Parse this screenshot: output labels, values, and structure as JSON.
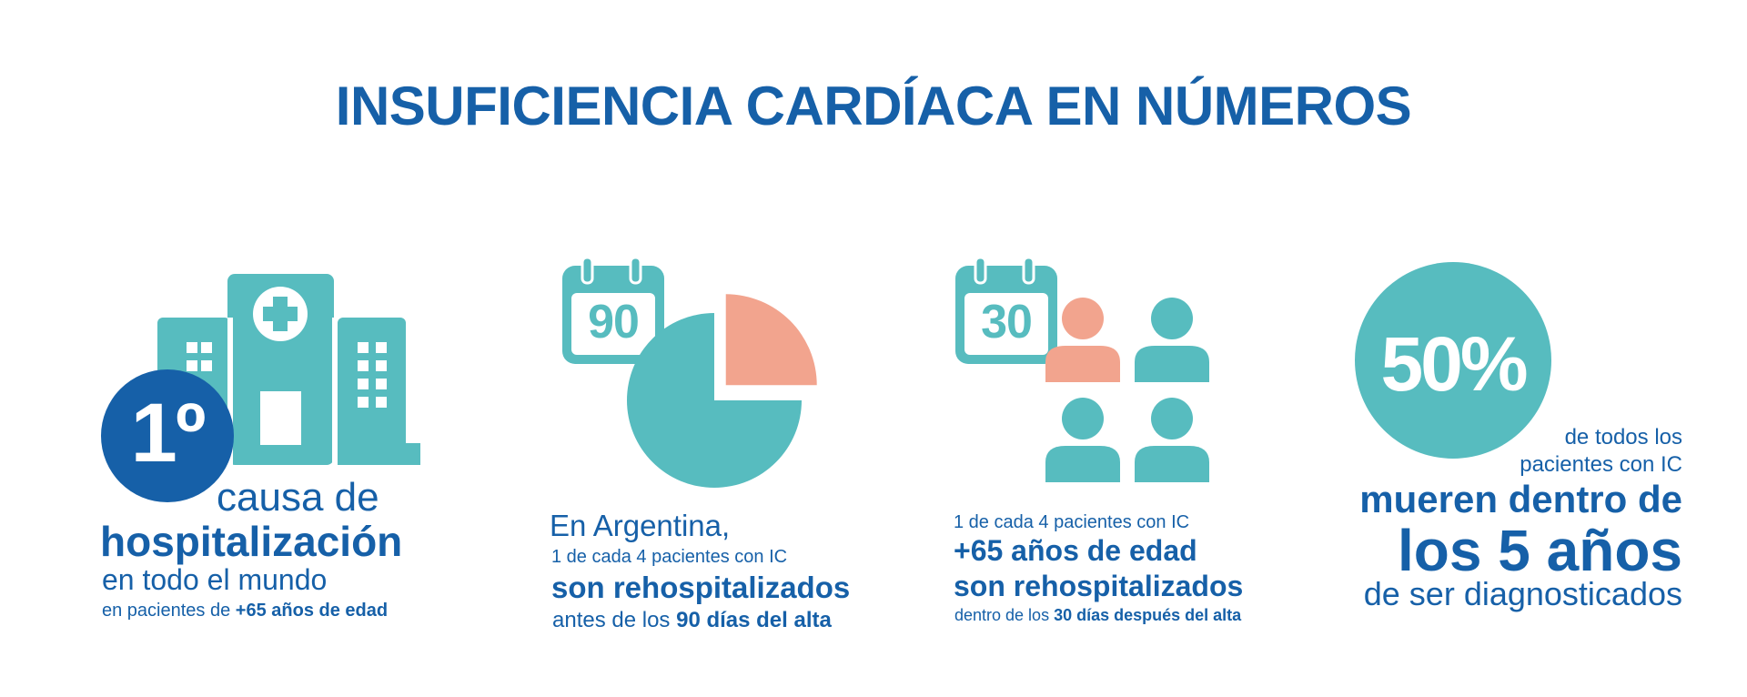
{
  "title": "INSUFICIENCIA CARDÍACA EN NÚMEROS",
  "colors": {
    "blue": "#1660a8",
    "teal": "#57bcbf",
    "salmon": "#f2a48e",
    "white": "#ffffff"
  },
  "panel1": {
    "icon": "hospital-icon",
    "badge": "1º",
    "line1": "causa de",
    "line2": "hospitalización",
    "line3": "en todo el mundo",
    "line4_prefix": "en pacientes de ",
    "line4_bold": "+65 años de edad"
  },
  "panel2": {
    "calendar_icon": "calendar-icon",
    "calendar_number": "90",
    "pie_icon": "pie-chart-icon",
    "pie_fraction_highlighted": 0.25,
    "line1": "En Argentina,",
    "line2": "1 de cada 4 pacientes con IC",
    "line3": "son rehospitalizados",
    "line4_prefix": "antes de los ",
    "line4_bold": "90 días del alta"
  },
  "panel3": {
    "calendar_icon": "calendar-icon",
    "calendar_number": "30",
    "people_icon": "people-group-icon",
    "people_highlighted": 1,
    "people_total": 4,
    "line1": "1 de cada 4 pacientes con IC",
    "line2": "+65 años de edad",
    "line3": "son rehospitalizados",
    "line4_prefix": "dentro de los ",
    "line4_bold": "30 días después del alta"
  },
  "panel4": {
    "circle_value": "50%",
    "line1": "de todos los",
    "line2": "pacientes con IC",
    "line3": "mueren dentro de",
    "line4": "los 5 años",
    "line5": "de ser diagnosticados"
  }
}
